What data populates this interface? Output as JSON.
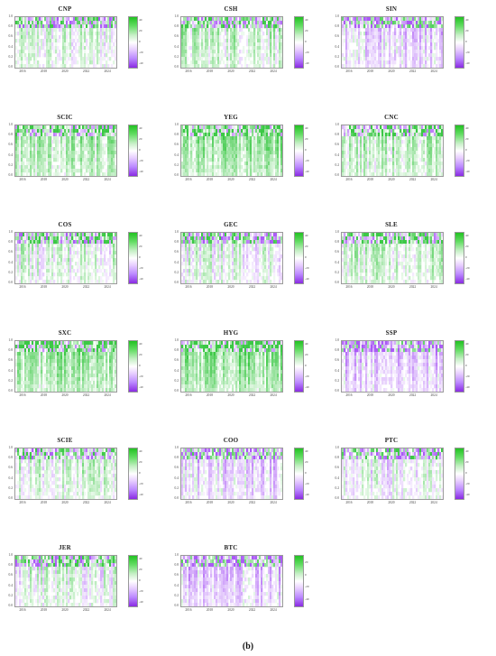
{
  "caption": "(b)",
  "colors": {
    "strong_positive": "#33cc33",
    "strong_negative": "#9933ff",
    "neutral": "#ffffff"
  },
  "chart_data": [
    {
      "type": "heatmap",
      "title": "CNP",
      "x_ticks": [
        "2016",
        "2018",
        "2020",
        "2022",
        "2024"
      ],
      "y_ticks": [
        "0.0",
        "0.2",
        "0.4",
        "0.6",
        "0.8",
        "1.0"
      ],
      "legend_ticks": [
        "40",
        "20",
        "0",
        "-20",
        "-40"
      ],
      "ylim": [
        0,
        1
      ]
    },
    {
      "type": "heatmap",
      "title": "CSH",
      "x_ticks": [
        "2016",
        "2018",
        "2020",
        "2022",
        "2024"
      ],
      "y_ticks": [
        "0.0",
        "0.2",
        "0.4",
        "0.6",
        "0.8",
        "1.0"
      ],
      "legend_ticks": [
        "40",
        "20",
        "0",
        "-20",
        "-40"
      ],
      "ylim": [
        0,
        1
      ]
    },
    {
      "type": "heatmap",
      "title": "SIN",
      "x_ticks": [
        "2016",
        "2018",
        "2020",
        "2022",
        "2024"
      ],
      "y_ticks": [
        "0.0",
        "0.2",
        "0.4",
        "0.6",
        "0.8",
        "1.0"
      ],
      "legend_ticks": [
        "40",
        "20",
        "0",
        "-20",
        "-40"
      ],
      "ylim": [
        0,
        1
      ]
    },
    {
      "type": "heatmap",
      "title": "SCIC",
      "x_ticks": [
        "2016",
        "2018",
        "2020",
        "2022",
        "2024"
      ],
      "y_ticks": [
        "0.0",
        "0.2",
        "0.4",
        "0.6",
        "0.8",
        "1.0"
      ],
      "legend_ticks": [
        "40",
        "20",
        "0",
        "-20",
        "-40"
      ],
      "ylim": [
        0,
        1
      ]
    },
    {
      "type": "heatmap",
      "title": "YEG",
      "x_ticks": [
        "2016",
        "2018",
        "2020",
        "2022",
        "2024"
      ],
      "y_ticks": [
        "0.0",
        "0.2",
        "0.4",
        "0.6",
        "0.8",
        "1.0"
      ],
      "legend_ticks": [
        "40",
        "20",
        "0",
        "-20",
        "-40"
      ],
      "ylim": [
        0,
        1
      ]
    },
    {
      "type": "heatmap",
      "title": "CNC",
      "x_ticks": [
        "2016",
        "2018",
        "2020",
        "2022",
        "2024"
      ],
      "y_ticks": [
        "0.0",
        "0.2",
        "0.4",
        "0.6",
        "0.8",
        "1.0"
      ],
      "legend_ticks": [
        "40",
        "20",
        "0",
        "-20",
        "-40"
      ],
      "ylim": [
        0,
        1
      ]
    },
    {
      "type": "heatmap",
      "title": "COS",
      "x_ticks": [
        "2016",
        "2018",
        "2020",
        "2022",
        "2024"
      ],
      "y_ticks": [
        "0.0",
        "0.2",
        "0.4",
        "0.6",
        "0.8",
        "1.0"
      ],
      "legend_ticks": [
        "40",
        "20",
        "0",
        "-20",
        "-40"
      ],
      "ylim": [
        0,
        1
      ]
    },
    {
      "type": "heatmap",
      "title": "GEC",
      "x_ticks": [
        "2016",
        "2018",
        "2020",
        "2022",
        "2024"
      ],
      "y_ticks": [
        "0.0",
        "0.2",
        "0.4",
        "0.6",
        "0.8",
        "1.0"
      ],
      "legend_ticks": [
        "40",
        "20",
        "0",
        "-20",
        "-40"
      ],
      "ylim": [
        0,
        1
      ]
    },
    {
      "type": "heatmap",
      "title": "SLE",
      "x_ticks": [
        "2016",
        "2018",
        "2020",
        "2022",
        "2024"
      ],
      "y_ticks": [
        "0.0",
        "0.2",
        "0.4",
        "0.6",
        "0.8",
        "1.0"
      ],
      "legend_ticks": [
        "40",
        "20",
        "0",
        "-20",
        "-40"
      ],
      "ylim": [
        0,
        1
      ]
    },
    {
      "type": "heatmap",
      "title": "SXC",
      "x_ticks": [
        "2016",
        "2018",
        "2020",
        "2022",
        "2024"
      ],
      "y_ticks": [
        "0.0",
        "0.2",
        "0.4",
        "0.6",
        "0.8",
        "1.0"
      ],
      "legend_ticks": [
        "40",
        "20",
        "0",
        "-20",
        "-40"
      ],
      "ylim": [
        0,
        1
      ]
    },
    {
      "type": "heatmap",
      "title": "HYG",
      "x_ticks": [
        "2016",
        "2018",
        "2020",
        "2022",
        "2024"
      ],
      "y_ticks": [
        "0.0",
        "0.2",
        "0.4",
        "0.6",
        "0.8",
        "1.0"
      ],
      "legend_ticks": [
        "40",
        "20",
        "0",
        "-20",
        "-40"
      ],
      "ylim": [
        0,
        1
      ]
    },
    {
      "type": "heatmap",
      "title": "SSP",
      "x_ticks": [
        "2016",
        "2018",
        "2020",
        "2022",
        "2024"
      ],
      "y_ticks": [
        "0.0",
        "0.2",
        "0.4",
        "0.6",
        "0.8",
        "1.0"
      ],
      "legend_ticks": [
        "40",
        "20",
        "0",
        "-20",
        "-40"
      ],
      "ylim": [
        0,
        1
      ]
    },
    {
      "type": "heatmap",
      "title": "SCIE",
      "x_ticks": [
        "2016",
        "2018",
        "2020",
        "2022",
        "2024"
      ],
      "y_ticks": [
        "0.0",
        "0.2",
        "0.4",
        "0.6",
        "0.8",
        "1.0"
      ],
      "legend_ticks": [
        "40",
        "20",
        "0",
        "-20",
        "-40"
      ],
      "ylim": [
        0,
        1
      ]
    },
    {
      "type": "heatmap",
      "title": "COO",
      "x_ticks": [
        "2016",
        "2018",
        "2020",
        "2022",
        "2024"
      ],
      "y_ticks": [
        "0.0",
        "0.2",
        "0.4",
        "0.6",
        "0.8",
        "1.0"
      ],
      "legend_ticks": [
        "40",
        "20",
        "0",
        "-20",
        "-40"
      ],
      "ylim": [
        0,
        1
      ]
    },
    {
      "type": "heatmap",
      "title": "PTC",
      "x_ticks": [
        "2016",
        "2018",
        "2020",
        "2022",
        "2024"
      ],
      "y_ticks": [
        "0.0",
        "0.2",
        "0.4",
        "0.6",
        "0.8",
        "1.0"
      ],
      "legend_ticks": [
        "40",
        "20",
        "0",
        "-20",
        "-40"
      ],
      "ylim": [
        0,
        1
      ]
    },
    {
      "type": "heatmap",
      "title": "JER",
      "x_ticks": [
        "2016",
        "2018",
        "2020",
        "2022",
        "2024"
      ],
      "y_ticks": [
        "0.0",
        "0.2",
        "0.4",
        "0.6",
        "0.8",
        "1.0"
      ],
      "legend_ticks": [
        "40",
        "20",
        "0",
        "-20",
        "-40"
      ],
      "ylim": [
        0,
        1
      ]
    },
    {
      "type": "heatmap",
      "title": "BTC",
      "x_ticks": [
        "2016",
        "2018",
        "2020",
        "2022",
        "2024"
      ],
      "y_ticks": [
        "0.0",
        "0.2",
        "0.4",
        "0.6",
        "0.8",
        "1.0"
      ],
      "legend_ticks": [
        "20",
        "0",
        "-20",
        "-40"
      ],
      "ylim": [
        0,
        1
      ]
    }
  ]
}
